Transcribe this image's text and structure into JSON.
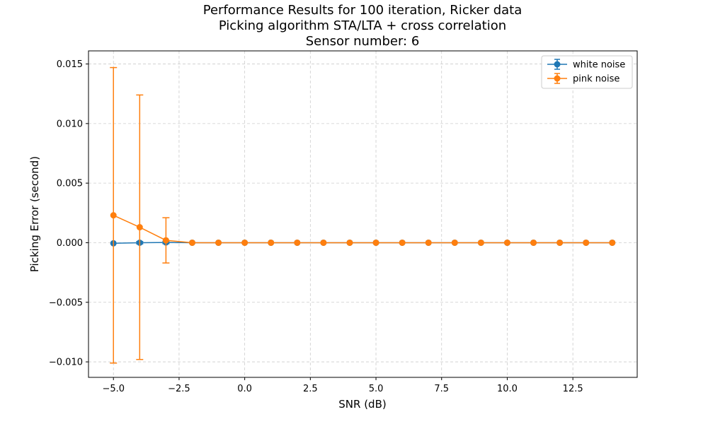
{
  "chart_data": {
    "type": "line",
    "title": [
      "Performance Results for 100 iteration, Ricker data",
      "Picking algorithm STA/LTA + cross correlation",
      "Sensor number: 6"
    ],
    "xlabel": "SNR (dB)",
    "ylabel": "Picking Error (second)",
    "xlim": [
      -5.95,
      14.95
    ],
    "ylim": [
      -0.0113,
      0.0161
    ],
    "xticks": [
      -5.0,
      -2.5,
      0.0,
      2.5,
      5.0,
      7.5,
      10.0,
      12.5
    ],
    "xtick_labels": [
      "−5.0",
      "−2.5",
      "0.0",
      "2.5",
      "5.0",
      "7.5",
      "10.0",
      "12.5"
    ],
    "yticks": [
      -0.01,
      -0.005,
      0.0,
      0.005,
      0.01,
      0.015
    ],
    "ytick_labels": [
      "−0.010",
      "−0.005",
      "0.000",
      "0.005",
      "0.010",
      "0.015"
    ],
    "grid": true,
    "legend_position": "top-right",
    "x": [
      -5,
      -4,
      -3,
      -2,
      -1,
      0,
      1,
      2,
      3,
      4,
      5,
      6,
      7,
      8,
      9,
      10,
      11,
      12,
      13,
      14
    ],
    "series": [
      {
        "name": "white noise",
        "color": "#1f77b4",
        "values": [
          -5e-05,
          0.0,
          2e-05,
          0.0,
          0.0,
          0.0,
          0.0,
          0.0,
          0.0,
          0.0,
          0.0,
          0.0,
          0.0,
          0.0,
          0.0,
          0.0,
          0.0,
          0.0,
          0.0,
          0.0
        ],
        "errors": [
          1e-05,
          0.0001,
          0.0001,
          2e-05,
          0.0,
          0.0,
          0.0,
          0.0,
          0.0,
          0.0,
          0.0,
          0.0,
          0.0,
          0.0,
          0.0,
          0.0,
          0.0,
          0.0,
          0.0,
          0.0
        ]
      },
      {
        "name": "pink noise",
        "color": "#ff7f0e",
        "values": [
          0.0023,
          0.0013,
          0.0002,
          0.0,
          0.0,
          0.0,
          0.0,
          0.0,
          0.0,
          0.0,
          0.0,
          0.0,
          0.0,
          0.0,
          0.0,
          0.0,
          0.0,
          0.0,
          0.0,
          0.0
        ],
        "errors": [
          0.0124,
          0.0111,
          0.0019,
          0.0,
          0.0,
          0.0,
          0.0,
          0.0,
          0.0,
          0.0,
          0.0,
          0.0,
          0.0,
          0.0,
          0.0,
          0.0,
          0.0,
          0.0,
          0.0,
          0.0
        ]
      }
    ]
  }
}
